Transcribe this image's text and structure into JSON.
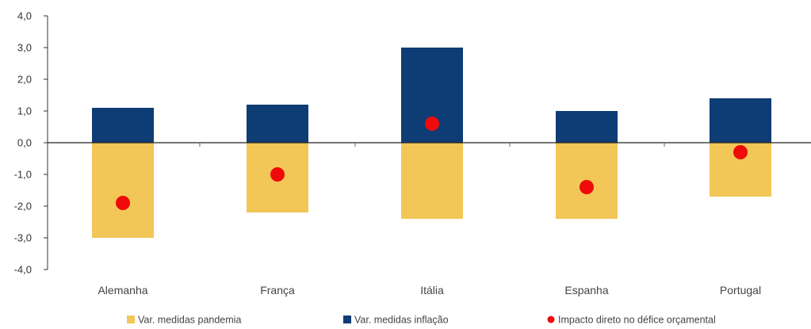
{
  "chart_data": {
    "type": "bar",
    "stacked": true,
    "categories": [
      "Alemanha",
      "França",
      "Itália",
      "Espanha",
      "Portugal"
    ],
    "ylim": [
      -4.0,
      4.0
    ],
    "yticks": [
      "4,0",
      "3,0",
      "2,0",
      "1,0",
      "0,0",
      "-1,0",
      "-2,0",
      "-3,0",
      "-4,0"
    ],
    "ytick_values": [
      4,
      3,
      2,
      1,
      0,
      -1,
      -2,
      -3,
      -4
    ],
    "grid": false,
    "legend_position": "bottom",
    "series": [
      {
        "name": "Var. medidas pandemia",
        "kind": "bar",
        "color": "#F2C657",
        "values": [
          -3.0,
          -2.2,
          -2.4,
          -2.4,
          -1.7
        ]
      },
      {
        "name": "Var. medidas inflação",
        "kind": "bar",
        "color": "#0E3C74",
        "values": [
          1.1,
          1.2,
          3.0,
          1.0,
          1.4
        ]
      },
      {
        "name": "Impacto direto no défice orçamental",
        "kind": "point",
        "color": "#F00A0A",
        "values": [
          -1.9,
          -1.0,
          0.6,
          -1.4,
          -0.3
        ]
      }
    ]
  }
}
